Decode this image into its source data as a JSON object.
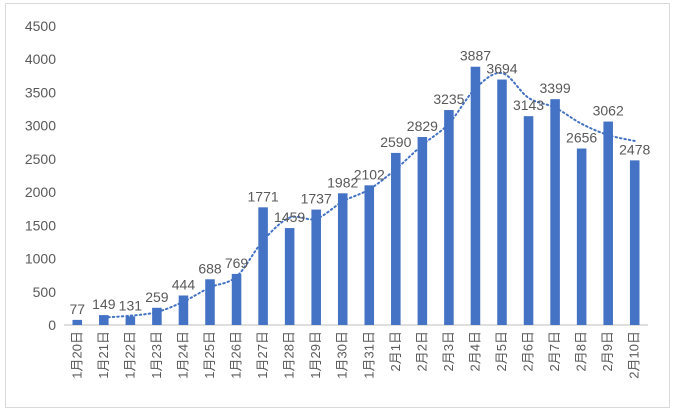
{
  "chart_data": {
    "type": "bar",
    "title": "",
    "xlabel": "",
    "ylabel": "",
    "ylim": [
      0,
      4500
    ],
    "y_ticks": [
      0,
      500,
      1000,
      1500,
      2000,
      2500,
      3000,
      3500,
      4000,
      4500
    ],
    "categories": [
      "1月20日",
      "1月21日",
      "1月22日",
      "1月23日",
      "1月24日",
      "1月25日",
      "1月26日",
      "1月27日",
      "1月28日",
      "1月29日",
      "1月30日",
      "1月31日",
      "2月1日",
      "2月2日",
      "2月3日",
      "2月4日",
      "2月5日",
      "2月6日",
      "2月7日",
      "2月8日",
      "2月9日",
      "2月10日"
    ],
    "values": [
      77,
      149,
      131,
      259,
      444,
      688,
      769,
      1771,
      1459,
      1737,
      1982,
      2102,
      2590,
      2829,
      3235,
      3887,
      3694,
      3143,
      3399,
      2656,
      3062,
      2478
    ],
    "data_labels": true,
    "trendline": {
      "type": "moving_average",
      "period": 2,
      "style": "dotted"
    },
    "grid": false,
    "bar_color": "#4472c4",
    "trend_color": "#4472c4",
    "legend": "none"
  }
}
